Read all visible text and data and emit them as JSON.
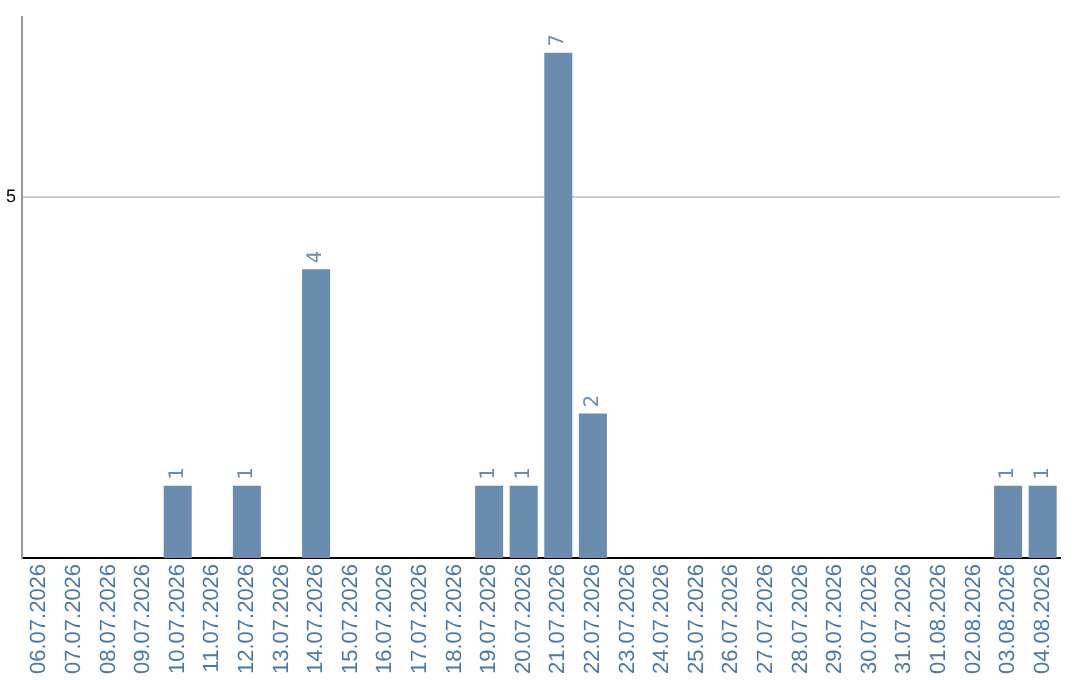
{
  "chart_data": {
    "type": "bar",
    "categories": [
      "06.07.2026",
      "07.07.2026",
      "08.07.2026",
      "09.07.2026",
      "10.07.2026",
      "11.07.2026",
      "12.07.2026",
      "13.07.2026",
      "14.07.2026",
      "15.07.2026",
      "16.07.2026",
      "17.07.2026",
      "18.07.2026",
      "19.07.2026",
      "20.07.2026",
      "21.07.2026",
      "22.07.2026",
      "23.07.2026",
      "24.07.2026",
      "25.07.2026",
      "26.07.2026",
      "27.07.2026",
      "28.07.2026",
      "29.07.2026",
      "30.07.2026",
      "31.07.2026",
      "01.08.2026",
      "02.08.2026",
      "03.08.2026",
      "04.08.2026"
    ],
    "values": [
      0,
      0,
      0,
      0,
      1,
      0,
      1,
      0,
      4,
      0,
      0,
      0,
      0,
      1,
      1,
      7,
      2,
      0,
      0,
      0,
      0,
      0,
      0,
      0,
      0,
      0,
      0,
      0,
      1,
      1
    ],
    "value_labels": [
      null,
      null,
      null,
      null,
      "1",
      null,
      "1",
      null,
      "4",
      null,
      null,
      null,
      null,
      "1",
      "1",
      "7",
      "2",
      null,
      null,
      null,
      null,
      null,
      null,
      null,
      null,
      null,
      null,
      null,
      "1",
      "1"
    ],
    "color": "#6a8caf",
    "ylim": [
      0,
      7.5
    ],
    "yticks": [
      5
    ],
    "grid": "y",
    "legend": false
  }
}
